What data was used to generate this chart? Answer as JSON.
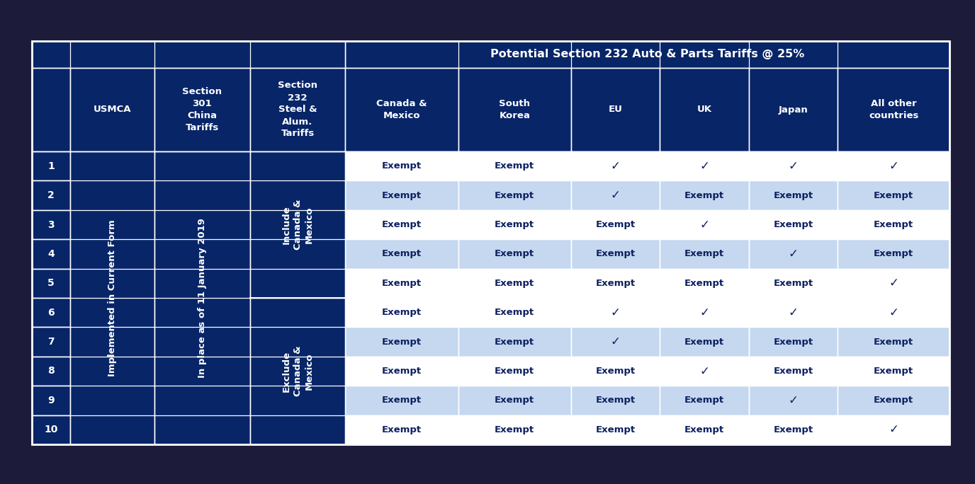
{
  "dark_blue": "#082567",
  "medium_blue": "#0D3080",
  "light_blue_bg": "#C5D8F0",
  "white": "#FFFFFF",
  "data_text_color": "#0D2060",
  "top_header": "Potential Section 232 Auto & Parts Tariffs @ 25%",
  "col_headers_row2": [
    "USMCA",
    "Section\n301\nChina\nTariffs",
    "Section\n232\nSteel &\nAlum.\nTariffs",
    "Canada &\nMexico",
    "South\nKorea",
    "EU",
    "UK",
    "Japan",
    "All other\ncountries"
  ],
  "usmca_label": "Implemented in Current Form",
  "s301_label": "In place as of 11 January 2019",
  "s232_include_label": "Include\nCanada &\nMexico",
  "s232_exclude_label": "Exclude\nCanada &\nMexico",
  "table_data": [
    [
      "Exempt",
      "Exempt",
      "✓",
      "✓",
      "✓",
      "✓"
    ],
    [
      "Exempt",
      "Exempt",
      "✓",
      "Exempt",
      "Exempt",
      "Exempt"
    ],
    [
      "Exempt",
      "Exempt",
      "Exempt",
      "✓",
      "Exempt",
      "Exempt"
    ],
    [
      "Exempt",
      "Exempt",
      "Exempt",
      "Exempt",
      "✓",
      "Exempt"
    ],
    [
      "Exempt",
      "Exempt",
      "Exempt",
      "Exempt",
      "Exempt",
      "✓"
    ],
    [
      "Exempt",
      "Exempt",
      "✓",
      "✓",
      "✓",
      "✓"
    ],
    [
      "Exempt",
      "Exempt",
      "✓",
      "Exempt",
      "Exempt",
      "Exempt"
    ],
    [
      "Exempt",
      "Exempt",
      "Exempt",
      "✓",
      "Exempt",
      "Exempt"
    ],
    [
      "Exempt",
      "Exempt",
      "Exempt",
      "Exempt",
      "✓",
      "Exempt"
    ],
    [
      "Exempt",
      "Exempt",
      "Exempt",
      "Exempt",
      "Exempt",
      "✓"
    ]
  ],
  "row_bg_colors": [
    "#FFFFFF",
    "#C5D8F0",
    "#FFFFFF",
    "#C5D8F0",
    "#FFFFFF",
    "#FFFFFF",
    "#C5D8F0",
    "#FFFFFF",
    "#C5D8F0",
    "#FFFFFF"
  ],
  "figsize": [
    13.76,
    6.84
  ],
  "dpi": 100
}
